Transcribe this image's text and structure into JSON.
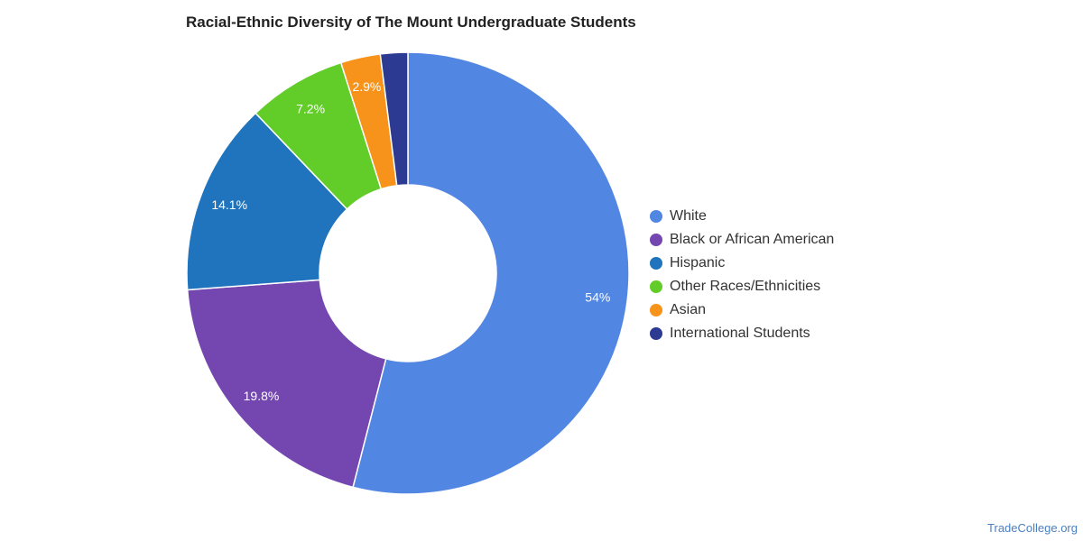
{
  "chart_data": {
    "type": "pie",
    "donut": true,
    "title": "Racial-Ethnic Diversity of The Mount Undergraduate Students",
    "categories": [
      "White",
      "Black or African American",
      "Hispanic",
      "Other Races/Ethnicities",
      "Asian",
      "International Students"
    ],
    "values": [
      54,
      19.8,
      14.1,
      7.2,
      2.9,
      2
    ],
    "labels": [
      "54%",
      "19.8%",
      "14.1%",
      "7.2%",
      "2.9%",
      ""
    ],
    "colors": [
      "#5286e3",
      "#7447b0",
      "#1f74bd",
      "#62cc29",
      "#f7931a",
      "#2c3a91"
    ],
    "legend_position": "right"
  },
  "footer": {
    "credit": "TradeCollege.org"
  }
}
